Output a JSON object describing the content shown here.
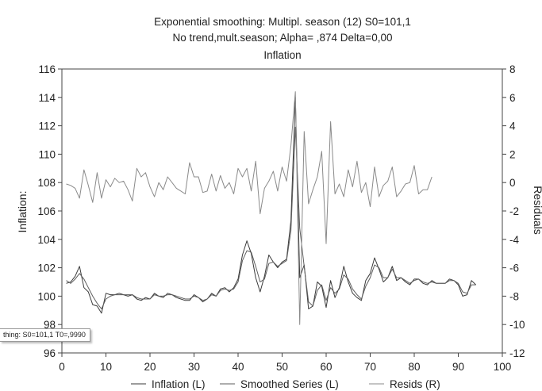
{
  "chart_data": {
    "type": "line",
    "title": "Exponential smoothing: Multipl. season (12) S0=101,1",
    "subtitle": "No trend,mult.season; Alpha=  ,874 Delta=0,00",
    "subtitle2": "Inflation",
    "xlabel": "",
    "ylabel_left": "Inflation:",
    "ylabel_right": "Residuals",
    "xlim": [
      0,
      100
    ],
    "ylim_left": [
      96,
      116
    ],
    "ylim_right": [
      -12,
      8
    ],
    "x_ticks": [
      "0",
      "10",
      "20",
      "30",
      "40",
      "50",
      "60",
      "70",
      "80",
      "90",
      "100"
    ],
    "y_ticks_left": [
      "96",
      "98",
      "100",
      "102",
      "104",
      "106",
      "108",
      "110",
      "112",
      "114",
      "116"
    ],
    "y_ticks_right": [
      "-12",
      "-10",
      "-8",
      "-6",
      "-4",
      "-2",
      "0",
      "2",
      "4",
      "6",
      "8"
    ],
    "grid": false,
    "legend_position": "bottom",
    "series": [
      {
        "name": "Inflation (L)",
        "axis": "left",
        "color": "#3a3a3a",
        "x": [
          1,
          2,
          3,
          4,
          5,
          6,
          7,
          8,
          9,
          10,
          11,
          12,
          13,
          14,
          15,
          16,
          17,
          18,
          19,
          20,
          21,
          22,
          23,
          24,
          25,
          26,
          27,
          28,
          29,
          30,
          31,
          32,
          33,
          34,
          35,
          36,
          37,
          38,
          39,
          40,
          41,
          42,
          43,
          44,
          45,
          46,
          47,
          48,
          49,
          50,
          51,
          52,
          53,
          54,
          55,
          56,
          57,
          58,
          59,
          60,
          61,
          62,
          63,
          64,
          65,
          66,
          67,
          68,
          69,
          70,
          71,
          72,
          73,
          74,
          75,
          76,
          77,
          78,
          79,
          80,
          81,
          82,
          83,
          84,
          85,
          86,
          87,
          88,
          89,
          90,
          91,
          92,
          93,
          94
        ],
        "values": [
          100.9,
          101.0,
          101.4,
          102.1,
          100.6,
          100.3,
          99.4,
          99.3,
          98.8,
          100.2,
          100.1,
          100.1,
          100.2,
          100.1,
          100.0,
          100.1,
          99.8,
          99.7,
          99.9,
          99.8,
          100.2,
          100.0,
          99.9,
          100.2,
          100.1,
          99.9,
          99.8,
          99.7,
          99.7,
          100.1,
          99.9,
          99.6,
          99.8,
          100.2,
          100.0,
          100.5,
          100.6,
          100.3,
          100.6,
          101.2,
          102.9,
          103.9,
          103.0,
          101.3,
          100.3,
          101.4,
          102.9,
          102.4,
          102.0,
          102.4,
          102.6,
          105.3,
          114.0,
          101.3,
          102.2,
          99.1,
          99.3,
          101.0,
          100.7,
          99.2,
          101.1,
          99.9,
          100.6,
          102.1,
          101.0,
          100.2,
          99.9,
          99.7,
          101.1,
          101.6,
          102.7,
          101.9,
          101.0,
          101.3,
          102.1,
          101.1,
          101.3,
          101.0,
          100.8,
          101.2,
          101.2,
          100.9,
          100.8,
          101.1,
          100.9,
          100.9,
          100.9,
          101.2,
          101.1,
          100.8,
          100.0,
          100.1,
          101.1,
          100.8
        ]
      },
      {
        "name": "Smoothed Series (L)",
        "axis": "left",
        "color": "#5e5e5e",
        "x": [
          1,
          2,
          3,
          4,
          5,
          6,
          7,
          8,
          9,
          10,
          11,
          12,
          13,
          14,
          15,
          16,
          17,
          18,
          19,
          20,
          21,
          22,
          23,
          24,
          25,
          26,
          27,
          28,
          29,
          30,
          31,
          32,
          33,
          34,
          35,
          36,
          37,
          38,
          39,
          40,
          41,
          42,
          43,
          44,
          45,
          46,
          47,
          48,
          49,
          50,
          51,
          52,
          53,
          54,
          55,
          56,
          57,
          58,
          59,
          60,
          61,
          62,
          63,
          64,
          65,
          66,
          67,
          68,
          69,
          70,
          71,
          72,
          73,
          74,
          75,
          76,
          77,
          78,
          79,
          80,
          81,
          82,
          83,
          84,
          85,
          86,
          87,
          88,
          89,
          90,
          91,
          92,
          93,
          94
        ],
        "values": [
          101.1,
          100.9,
          101.2,
          101.6,
          101.2,
          100.6,
          100.0,
          99.5,
          99.1,
          99.8,
          100.0,
          100.1,
          100.1,
          100.1,
          100.1,
          100.1,
          99.9,
          99.8,
          99.8,
          99.8,
          100.1,
          100.0,
          100.0,
          100.1,
          100.1,
          100.0,
          99.9,
          99.8,
          99.8,
          100.0,
          99.9,
          99.7,
          99.8,
          100.1,
          100.0,
          100.4,
          100.5,
          100.4,
          100.5,
          101.0,
          102.5,
          103.2,
          103.1,
          102.1,
          101.0,
          101.2,
          102.3,
          102.4,
          102.1,
          102.3,
          102.5,
          104.6,
          111.9,
          104.8,
          102.1,
          99.6,
          99.3,
          100.4,
          100.8,
          99.7,
          100.6,
          100.2,
          100.5,
          101.5,
          101.2,
          100.5,
          100.1,
          99.8,
          100.7,
          101.3,
          102.2,
          102.0,
          101.3,
          101.3,
          101.9,
          101.3,
          101.3,
          101.1,
          100.9,
          101.1,
          101.2,
          101.0,
          100.9,
          101.0,
          100.9,
          100.9,
          100.9,
          101.1,
          101.1,
          100.9,
          100.3,
          100.2,
          100.8,
          100.8
        ]
      },
      {
        "name": "Resids (R)",
        "axis": "right",
        "color": "#8a8a8a",
        "x": [
          1,
          2,
          3,
          4,
          5,
          6,
          7,
          8,
          9,
          10,
          11,
          12,
          13,
          14,
          15,
          16,
          17,
          18,
          19,
          20,
          21,
          22,
          23,
          24,
          25,
          26,
          27,
          28,
          29,
          30,
          31,
          32,
          33,
          34,
          35,
          36,
          37,
          38,
          39,
          40,
          41,
          42,
          43,
          44,
          45,
          46,
          47,
          48,
          49,
          50,
          51,
          52,
          53,
          54,
          55,
          56,
          57,
          58,
          59,
          60,
          61,
          62,
          63,
          64,
          65,
          66,
          67,
          68,
          69,
          70,
          71,
          72,
          73,
          74,
          75,
          76,
          77,
          78,
          79,
          80,
          81,
          82,
          83,
          84
        ],
        "values": [
          -0.1,
          -0.2,
          -0.4,
          -1.1,
          0.9,
          -0.2,
          -1.4,
          0.7,
          -1.1,
          0.2,
          -0.3,
          0.3,
          0.0,
          0.1,
          -0.5,
          -1.3,
          1.0,
          0.4,
          0.7,
          -0.3,
          -1.0,
          0.0,
          -0.5,
          0.4,
          0.0,
          -0.4,
          -0.6,
          -0.8,
          1.4,
          0.4,
          0.4,
          -0.7,
          -0.6,
          0.6,
          -0.6,
          0.5,
          -0.4,
          0.0,
          -0.8,
          1.0,
          0.4,
          1.0,
          -0.6,
          1.5,
          -2.2,
          -0.4,
          0.1,
          0.8,
          -0.6,
          1.1,
          0.1,
          2.6,
          6.4,
          -10.0,
          3.6,
          -1.5,
          -0.5,
          0.4,
          2.2,
          -4.3,
          4.3,
          -0.8,
          -0.1,
          -1.0,
          0.9,
          -0.3,
          1.5,
          -0.7,
          0.0,
          -1.7,
          1.1,
          -1.0,
          -0.2,
          0.1,
          1.1,
          -1.0,
          -0.6,
          -0.1,
          0.0,
          1.2,
          -0.8,
          -0.5,
          -0.5,
          0.4
        ]
      }
    ]
  },
  "tooltip_text": "thing:  S0=101,1  T0=,9990"
}
